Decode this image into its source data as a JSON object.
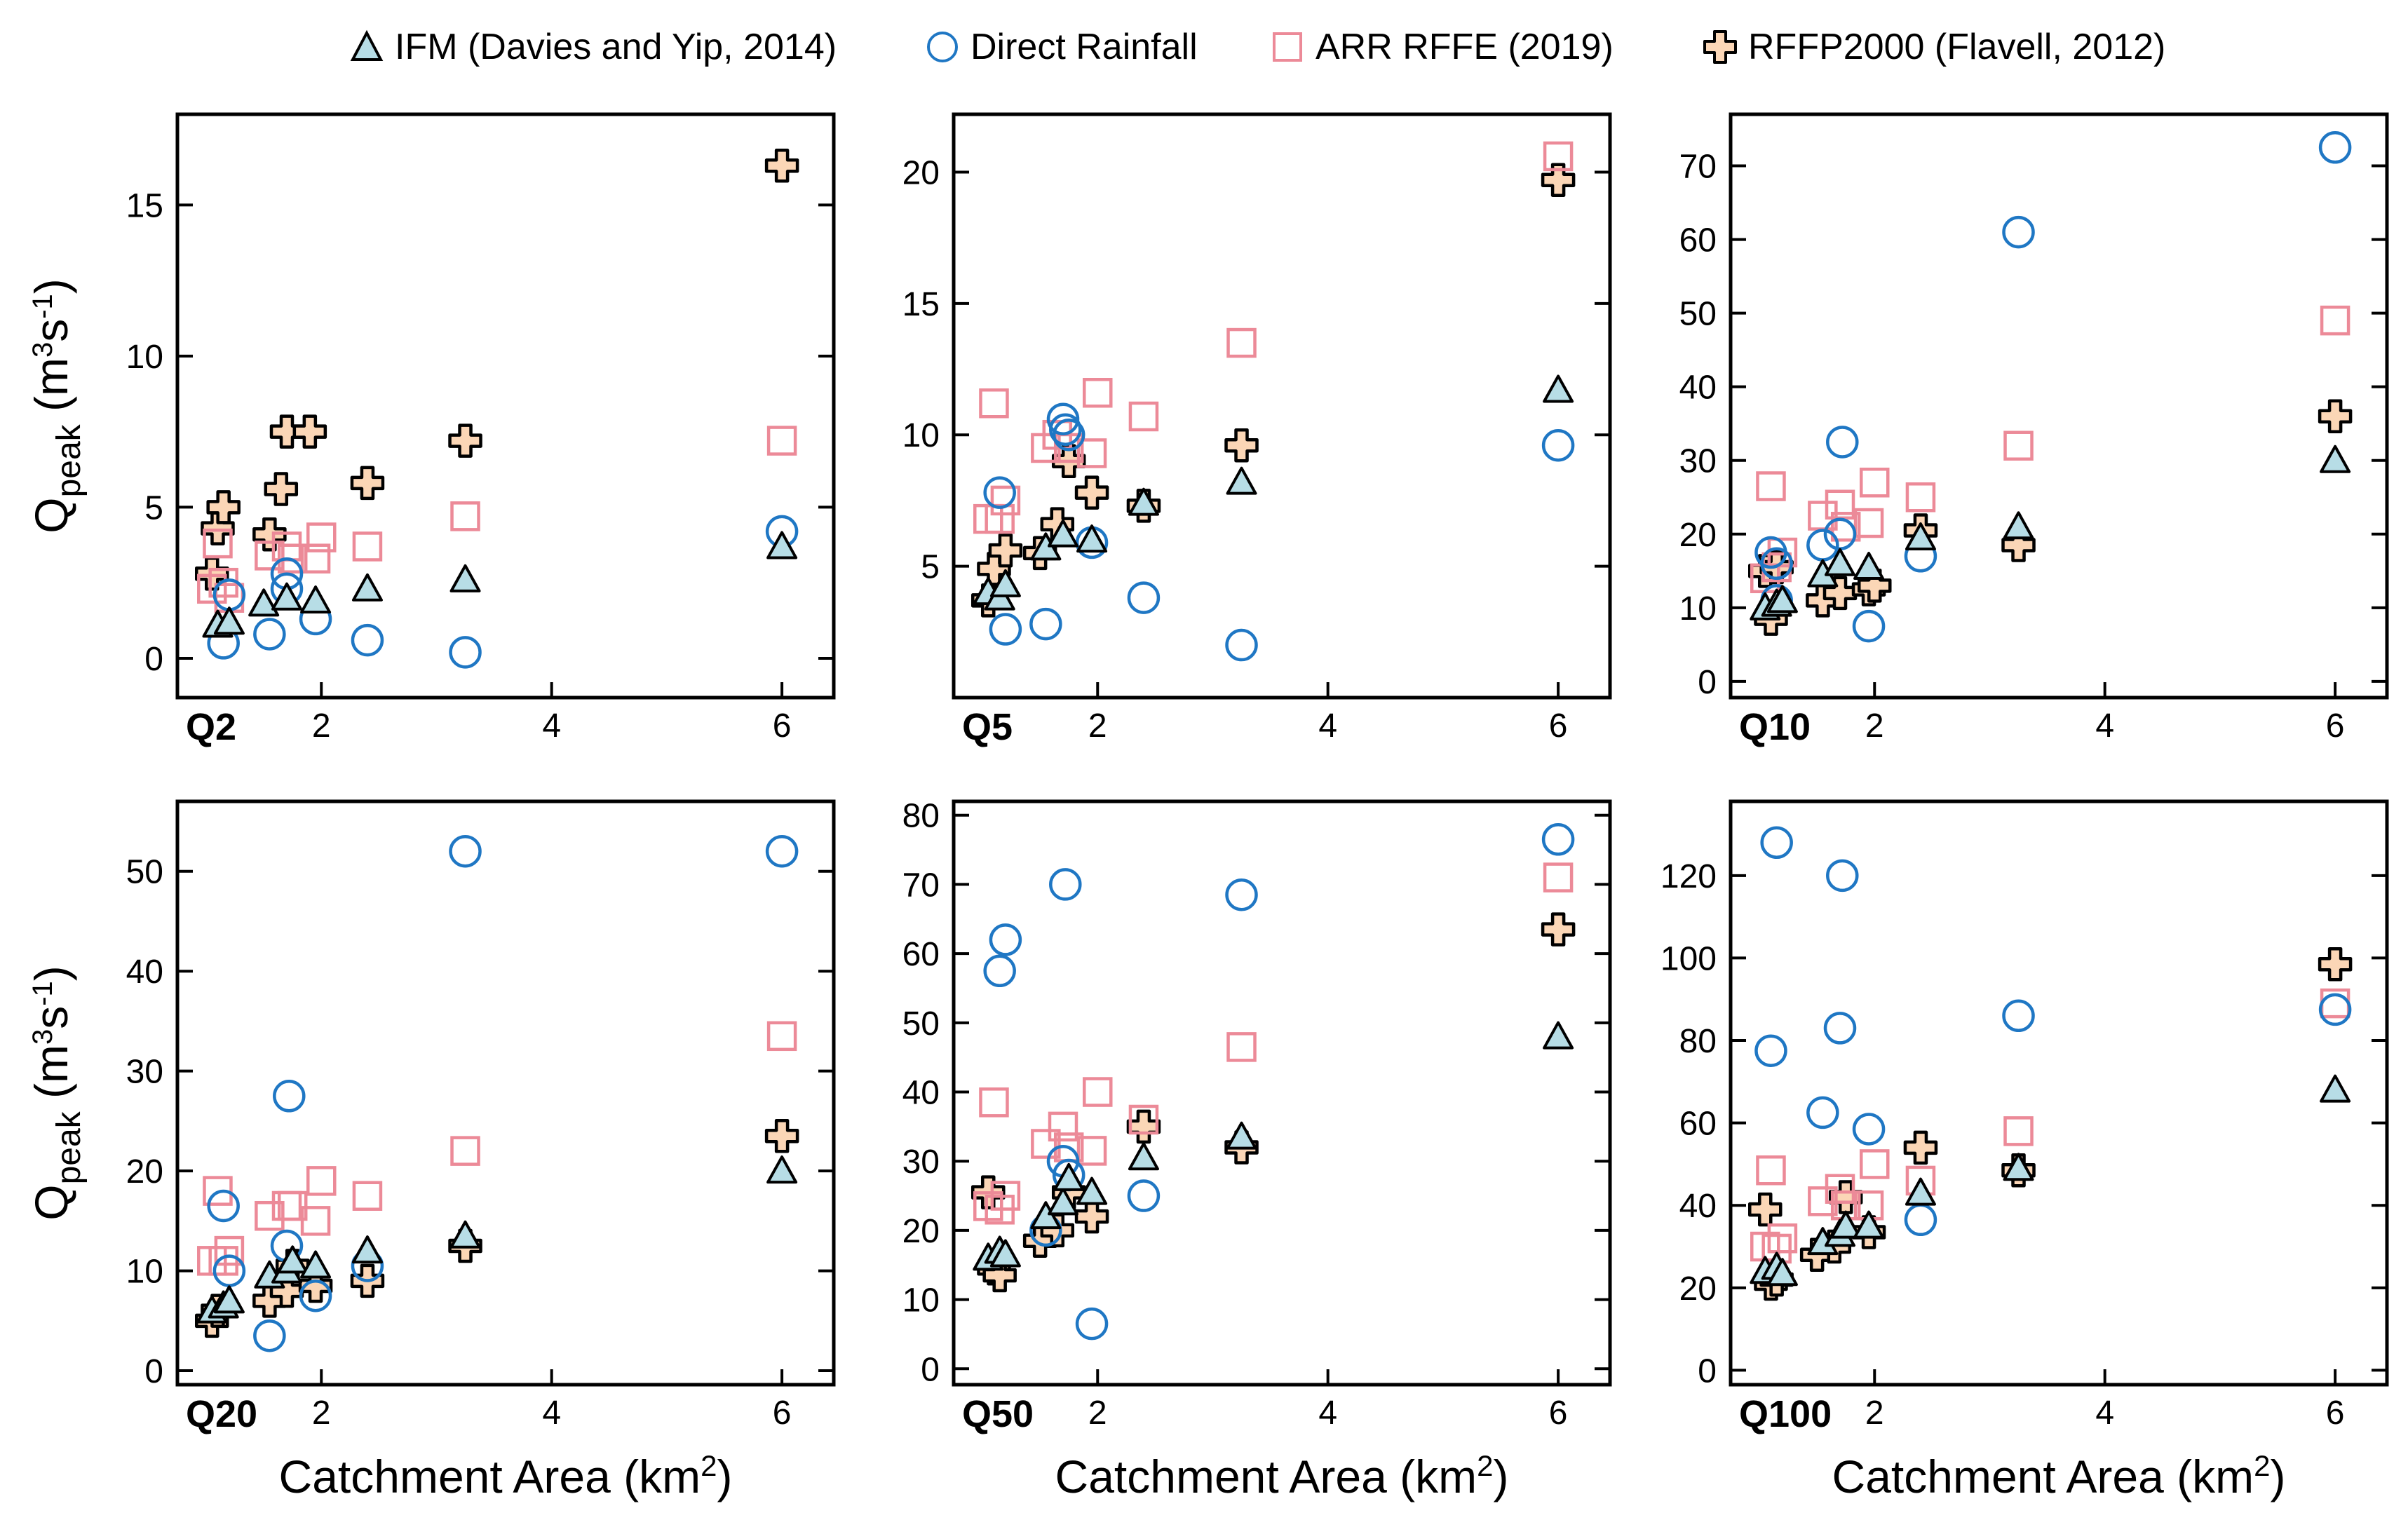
{
  "legend": [
    {
      "key": "ifm",
      "label": "IFM (Davies and Yip, 2014)",
      "marker": "triangle",
      "fill": "#b7dde6",
      "stroke": "#000000"
    },
    {
      "key": "direct",
      "label": "Direct Rainfall",
      "marker": "circle",
      "fill": "none",
      "stroke": "#1f77c4"
    },
    {
      "key": "arr",
      "label": "ARR RFFE (2019)",
      "marker": "square",
      "fill": "none",
      "stroke": "#ec8a98"
    },
    {
      "key": "rffp",
      "label": "RFFP2000 (Flavell, 2012)",
      "marker": "cross",
      "fill": "#fbd6b6",
      "stroke": "#000000"
    }
  ],
  "chart_data": [
    {
      "type": "scatter",
      "panel_label": "Q2",
      "ylabel_main": "Q",
      "ylabel_sub": "peak",
      "ylabel_unit": "(m3s-1)",
      "xlabel": "",
      "xlim": [
        0.75,
        6.45
      ],
      "xticks": [
        2,
        4,
        6
      ],
      "ylim": [
        -1.3,
        18
      ],
      "yticks": [
        0,
        5,
        10,
        15
      ],
      "series": [
        {
          "name": "IFM (Davies and Yip, 2014)",
          "key": "ifm",
          "x": [
            1.1,
            1.2,
            1.5,
            1.7,
            1.95,
            2.4,
            3.25,
            6.0
          ],
          "y": [
            1.1,
            1.2,
            1.8,
            2.0,
            1.9,
            2.3,
            2.6,
            3.7
          ]
        },
        {
          "name": "Direct Rainfall",
          "key": "direct",
          "x": [
            1.15,
            1.2,
            1.55,
            1.7,
            1.7,
            1.95,
            2.4,
            3.25,
            6.0
          ],
          "y": [
            0.5,
            2.1,
            0.8,
            2.3,
            2.8,
            1.3,
            0.6,
            0.2,
            4.2
          ]
        },
        {
          "name": "ARR RFFE (2019)",
          "key": "arr",
          "x": [
            1.05,
            1.1,
            1.15,
            1.2,
            1.55,
            1.7,
            1.75,
            1.95,
            2.0,
            2.4,
            3.25,
            6.0
          ],
          "y": [
            2.3,
            3.8,
            2.5,
            2.0,
            3.4,
            3.7,
            3.3,
            3.3,
            4.0,
            3.7,
            4.7,
            7.2
          ]
        },
        {
          "name": "RFFP2000 (Flavell, 2012)",
          "key": "rffp",
          "x": [
            1.05,
            1.1,
            1.15,
            1.55,
            1.65,
            1.7,
            1.9,
            2.4,
            3.25,
            6.0
          ],
          "y": [
            2.8,
            4.3,
            5.0,
            4.1,
            5.6,
            7.5,
            7.5,
            5.8,
            7.2,
            16.3
          ]
        }
      ]
    },
    {
      "type": "scatter",
      "panel_label": "Q5",
      "ylabel_main": "",
      "ylabel_sub": "",
      "ylabel_unit": "",
      "xlabel": "",
      "xlim": [
        0.75,
        6.45
      ],
      "xticks": [
        2,
        4,
        6
      ],
      "ylim": [
        0.0,
        22.2
      ],
      "yticks": [
        5,
        10,
        15,
        20
      ],
      "series": [
        {
          "name": "IFM (Davies and Yip, 2014)",
          "key": "ifm",
          "x": [
            1.05,
            1.15,
            1.2,
            1.55,
            1.7,
            1.95,
            2.4,
            3.25,
            6.0
          ],
          "y": [
            4.0,
            3.8,
            4.3,
            5.7,
            6.2,
            6.0,
            7.4,
            8.2,
            11.7
          ]
        },
        {
          "name": "Direct Rainfall",
          "key": "direct",
          "x": [
            1.15,
            1.2,
            1.55,
            1.7,
            1.72,
            1.75,
            1.95,
            2.4,
            3.25,
            6.0
          ],
          "y": [
            7.8,
            2.6,
            2.8,
            10.6,
            10.2,
            10.0,
            5.9,
            3.8,
            2.0,
            9.6
          ]
        },
        {
          "name": "ARR RFFE (2019)",
          "key": "arr",
          "x": [
            1.05,
            1.1,
            1.15,
            1.2,
            1.55,
            1.65,
            1.75,
            1.95,
            2.0,
            2.4,
            3.25,
            6.0
          ],
          "y": [
            6.8,
            11.2,
            6.8,
            7.5,
            9.5,
            10.0,
            9.5,
            9.3,
            11.6,
            10.7,
            13.5,
            20.6
          ]
        },
        {
          "name": "RFFP2000 (Flavell, 2012)",
          "key": "rffp",
          "x": [
            1.05,
            1.1,
            1.2,
            1.5,
            1.65,
            1.75,
            1.95,
            2.4,
            3.25,
            6.0
          ],
          "y": [
            3.7,
            4.9,
            5.6,
            5.5,
            6.6,
            9.0,
            7.8,
            7.3,
            9.6,
            19.7
          ]
        }
      ]
    },
    {
      "type": "scatter",
      "panel_label": "Q10",
      "ylabel_main": "",
      "ylabel_sub": "",
      "ylabel_unit": "",
      "xlabel": "",
      "xlim": [
        0.75,
        6.45
      ],
      "xticks": [
        2,
        4,
        6
      ],
      "ylim": [
        -2.2,
        77
      ],
      "yticks": [
        0,
        10,
        20,
        30,
        40,
        50,
        60,
        70
      ],
      "series": [
        {
          "name": "IFM (Davies and Yip, 2014)",
          "key": "ifm",
          "x": [
            1.05,
            1.15,
            1.2,
            1.55,
            1.7,
            1.95,
            2.4,
            3.25,
            6.0
          ],
          "y": [
            10.0,
            10.5,
            11.0,
            14.5,
            16.0,
            15.5,
            19.5,
            21.0,
            30.0
          ]
        },
        {
          "name": "Direct Rainfall",
          "key": "direct",
          "x": [
            1.1,
            1.15,
            1.15,
            1.55,
            1.7,
            1.72,
            1.95,
            2.4,
            3.25,
            6.0
          ],
          "y": [
            17.5,
            16.0,
            11.0,
            18.5,
            20.0,
            32.5,
            7.5,
            17.0,
            61.0,
            72.5
          ]
        },
        {
          "name": "ARR RFFE (2019)",
          "key": "arr",
          "x": [
            1.05,
            1.1,
            1.15,
            1.2,
            1.55,
            1.7,
            1.75,
            1.95,
            2.0,
            2.4,
            3.25,
            6.0
          ],
          "y": [
            14.0,
            26.5,
            15.5,
            17.5,
            22.5,
            24.0,
            21.0,
            21.5,
            27.0,
            25.0,
            32.0,
            49.0
          ]
        },
        {
          "name": "RFFP2000 (Flavell, 2012)",
          "key": "rffp",
          "x": [
            1.05,
            1.1,
            1.15,
            1.55,
            1.7,
            1.95,
            2.0,
            2.4,
            3.25,
            6.0
          ],
          "y": [
            15.0,
            8.5,
            15.5,
            11.0,
            12.0,
            12.5,
            13.0,
            20.5,
            18.5,
            36.0
          ]
        }
      ]
    },
    {
      "type": "scatter",
      "panel_label": "Q20",
      "ylabel_main": "Q",
      "ylabel_sub": "peak",
      "ylabel_unit": "(m3s-1)",
      "xlabel": "Catchment Area (km2)",
      "xlim": [
        0.75,
        6.45
      ],
      "xticks": [
        2,
        4,
        6
      ],
      "ylim": [
        -1.4,
        57
      ],
      "yticks": [
        0,
        10,
        20,
        30,
        40,
        50
      ],
      "series": [
        {
          "name": "IFM (Davies and Yip, 2014)",
          "key": "ifm",
          "x": [
            1.05,
            1.15,
            1.2,
            1.55,
            1.7,
            1.75,
            1.95,
            2.4,
            3.25,
            6.0
          ],
          "y": [
            6.0,
            6.5,
            7.0,
            9.5,
            10.0,
            11.0,
            10.5,
            12.0,
            13.5,
            20.0
          ]
        },
        {
          "name": "Direct Rainfall",
          "key": "direct",
          "x": [
            1.15,
            1.2,
            1.55,
            1.7,
            1.72,
            1.95,
            2.4,
            3.25,
            6.0
          ],
          "y": [
            16.5,
            10.0,
            3.5,
            12.5,
            27.5,
            7.5,
            10.5,
            52.0,
            52.0
          ]
        },
        {
          "name": "ARR RFFE (2019)",
          "key": "arr",
          "x": [
            1.05,
            1.1,
            1.15,
            1.2,
            1.55,
            1.7,
            1.75,
            1.95,
            2.0,
            2.4,
            3.25,
            6.0
          ],
          "y": [
            11.0,
            18.0,
            11.0,
            12.0,
            15.5,
            16.5,
            16.5,
            15.0,
            19.0,
            17.5,
            22.0,
            33.5
          ]
        },
        {
          "name": "RFFP2000 (Flavell, 2012)",
          "key": "rffp",
          "x": [
            1.05,
            1.1,
            1.55,
            1.7,
            1.75,
            1.95,
            2.4,
            3.25,
            6.0
          ],
          "y": [
            5.0,
            6.0,
            7.0,
            8.0,
            10.5,
            8.5,
            9.0,
            12.5,
            23.5
          ]
        }
      ]
    },
    {
      "type": "scatter",
      "panel_label": "Q50",
      "ylabel_main": "",
      "ylabel_sub": "",
      "ylabel_unit": "",
      "xlabel": "Catchment Area (km2)",
      "xlim": [
        0.75,
        6.45
      ],
      "xticks": [
        2,
        4,
        6
      ],
      "ylim": [
        -2.3,
        82
      ],
      "yticks": [
        0,
        10,
        20,
        30,
        40,
        50,
        60,
        70,
        80
      ],
      "series": [
        {
          "name": "IFM (Davies and Yip, 2014)",
          "key": "ifm",
          "x": [
            1.05,
            1.15,
            1.2,
            1.55,
            1.7,
            1.75,
            1.95,
            2.4,
            3.25,
            6.0
          ],
          "y": [
            16.0,
            17.0,
            16.5,
            22.0,
            24.0,
            27.5,
            25.5,
            30.5,
            33.5,
            48.0
          ]
        },
        {
          "name": "Direct Rainfall",
          "key": "direct",
          "x": [
            1.15,
            1.2,
            1.55,
            1.7,
            1.72,
            1.75,
            1.95,
            2.4,
            3.25,
            6.0
          ],
          "y": [
            57.5,
            62.0,
            20.0,
            30.0,
            70.0,
            28.0,
            6.5,
            25.0,
            68.5,
            76.5
          ]
        },
        {
          "name": "ARR RFFE (2019)",
          "key": "arr",
          "x": [
            1.05,
            1.1,
            1.15,
            1.2,
            1.55,
            1.7,
            1.75,
            1.95,
            2.0,
            2.4,
            3.25,
            6.0
          ],
          "y": [
            23.5,
            38.5,
            23.0,
            25.0,
            32.5,
            35.0,
            32.0,
            31.5,
            40.0,
            36.0,
            46.5,
            71.0
          ]
        },
        {
          "name": "RFFP2000 (Flavell, 2012)",
          "key": "rffp",
          "x": [
            1.05,
            1.1,
            1.15,
            1.5,
            1.65,
            1.75,
            1.95,
            2.4,
            3.25,
            6.0
          ],
          "y": [
            25.5,
            14.5,
            13.5,
            18.5,
            20.0,
            25.5,
            22.0,
            35.0,
            32.0,
            63.5
          ]
        }
      ]
    },
    {
      "type": "scatter",
      "panel_label": "Q100",
      "ylabel_main": "",
      "ylabel_sub": "",
      "ylabel_unit": "",
      "xlabel": "Catchment Area (km2)",
      "xlim": [
        0.75,
        6.45
      ],
      "xticks": [
        2,
        4,
        6
      ],
      "ylim": [
        -3.5,
        138
      ],
      "yticks": [
        0,
        20,
        40,
        60,
        80,
        100,
        120
      ],
      "series": [
        {
          "name": "IFM (Davies and Yip, 2014)",
          "key": "ifm",
          "x": [
            1.05,
            1.15,
            1.2,
            1.55,
            1.7,
            1.75,
            1.95,
            2.4,
            3.25,
            6.0
          ],
          "y": [
            24.0,
            25.0,
            23.5,
            31.0,
            33.0,
            35.0,
            35.0,
            43.0,
            49.0,
            68.0
          ]
        },
        {
          "name": "Direct Rainfall",
          "key": "direct",
          "x": [
            1.1,
            1.15,
            1.55,
            1.7,
            1.72,
            1.95,
            2.4,
            3.25,
            6.0
          ],
          "y": [
            77.5,
            128.0,
            62.5,
            83.0,
            120.0,
            58.5,
            36.5,
            86.0,
            87.5
          ]
        },
        {
          "name": "ARR RFFE (2019)",
          "key": "arr",
          "x": [
            1.05,
            1.1,
            1.15,
            1.2,
            1.55,
            1.7,
            1.75,
            1.95,
            2.0,
            2.4,
            3.25,
            6.0
          ],
          "y": [
            30.0,
            48.5,
            29.5,
            32.0,
            41.0,
            44.0,
            40.0,
            40.0,
            50.0,
            46.0,
            58.0,
            89.0
          ]
        },
        {
          "name": "RFFP2000 (Flavell, 2012)",
          "key": "rffp",
          "x": [
            1.05,
            1.1,
            1.15,
            1.5,
            1.65,
            1.75,
            1.95,
            2.4,
            3.25,
            6.0
          ],
          "y": [
            39.0,
            21.0,
            22.0,
            28.0,
            30.0,
            42.0,
            33.5,
            54.0,
            48.5,
            98.5
          ]
        }
      ]
    }
  ]
}
